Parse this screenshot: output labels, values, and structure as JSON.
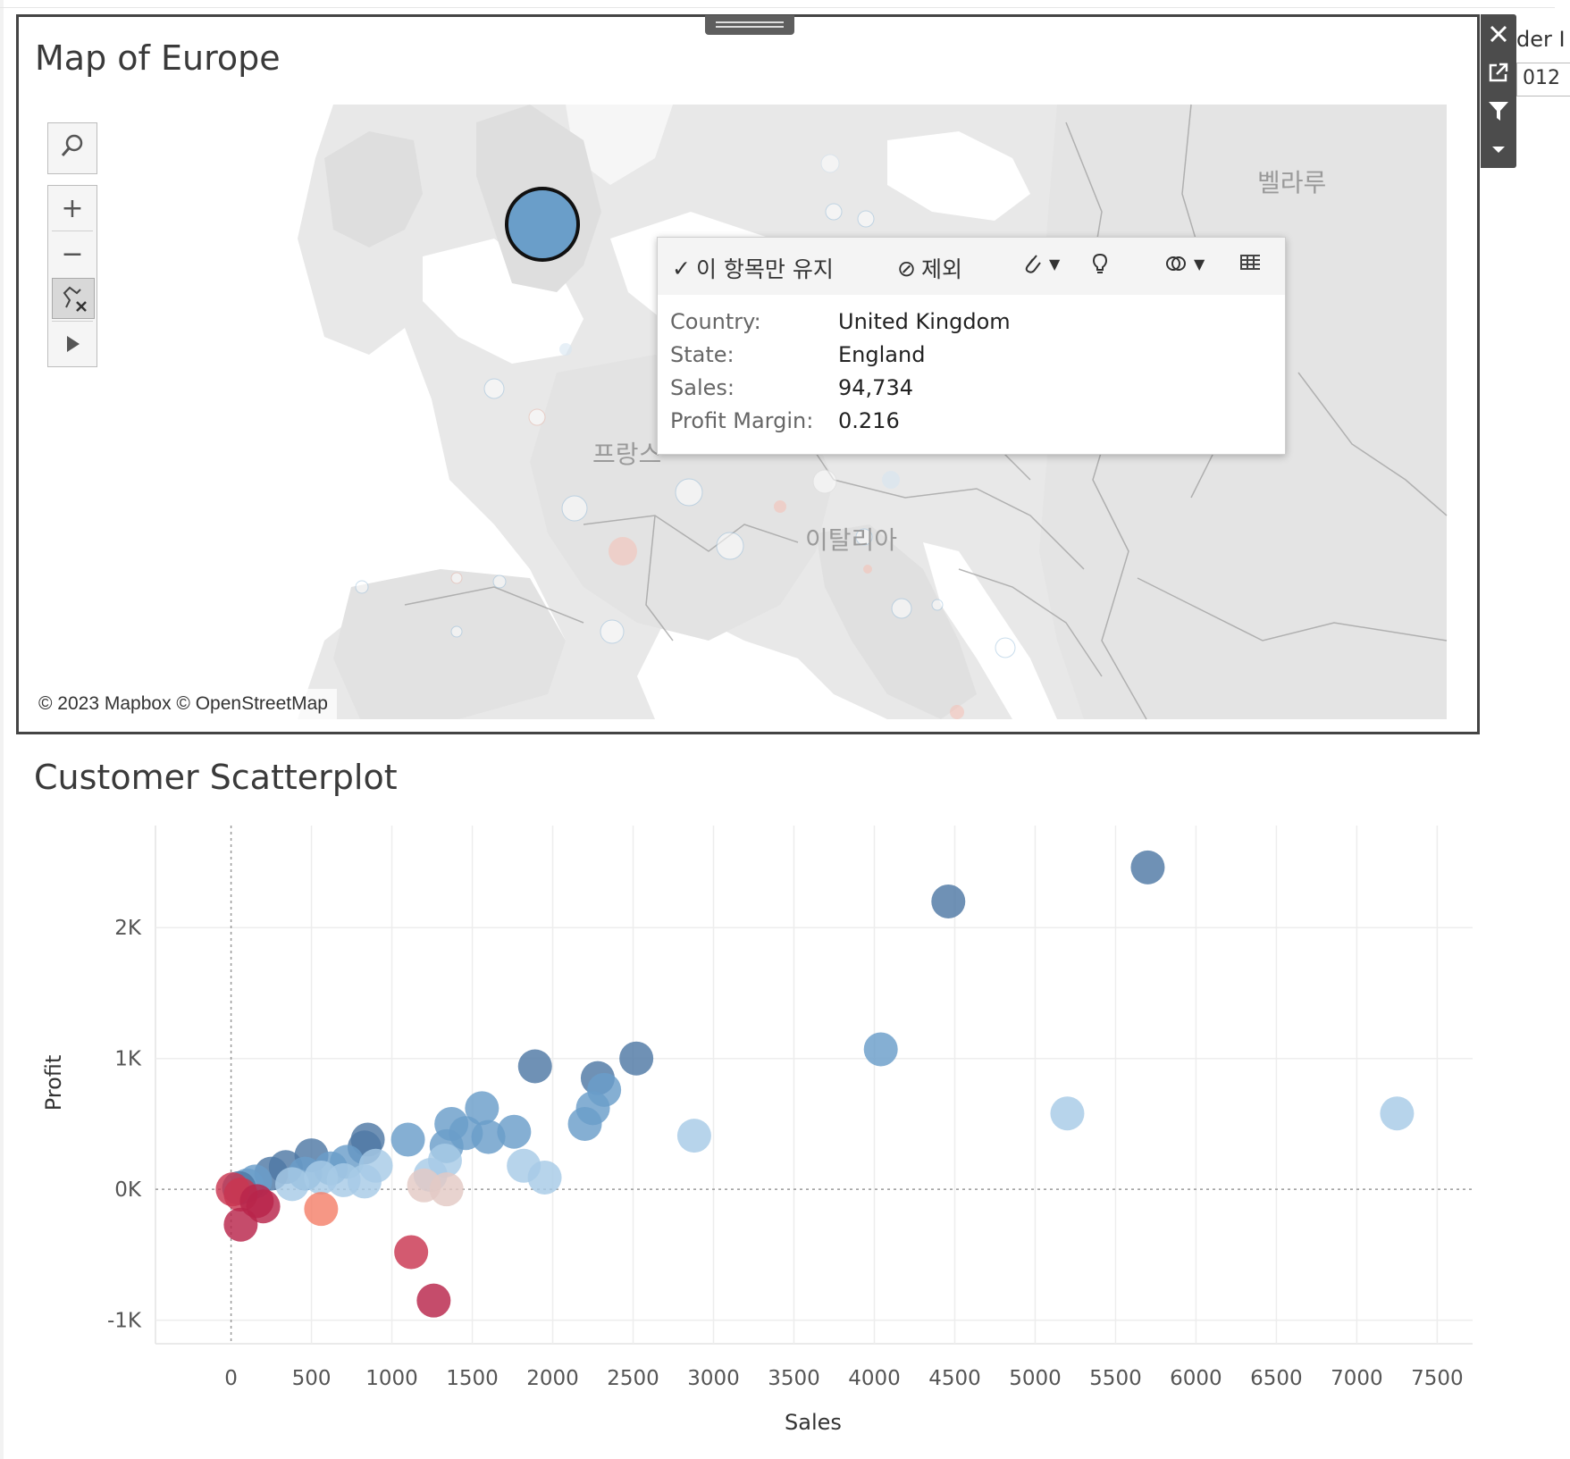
{
  "map": {
    "title": "Map of Europe",
    "attribution": "© 2023 Mapbox © OpenStreetMap",
    "labels": {
      "france": "프랑스",
      "italy": "이탈리아",
      "belarus": "벨라루"
    },
    "tools": {
      "search_icon": "magnifier-icon",
      "zoom_in": "+",
      "zoom_out": "−",
      "pin_icon": "pin-clear-icon",
      "play_icon": "play-icon"
    },
    "tooltip": {
      "keep_only": "이 항목만 유지",
      "exclude": "제외",
      "fields": [
        {
          "key": "Country:",
          "value": "United Kingdom"
        },
        {
          "key": "State:",
          "value": "England"
        },
        {
          "key": "Sales:",
          "value": "94,734"
        },
        {
          "key": "Profit Margin:",
          "value": "0.216"
        }
      ]
    },
    "selected_mark_color": "#6a9ec9"
  },
  "side_toolbar": {
    "close_icon": "close-icon",
    "popout_icon": "popout-icon",
    "filter_icon": "filter-icon",
    "menu_icon": "dropdown-icon"
  },
  "filter_peek": {
    "label": "der I",
    "value": "012"
  },
  "scatter": {
    "title": "Customer Scatterplot"
  },
  "chart_data": {
    "type": "scatter",
    "title": "Customer Scatterplot",
    "xlabel": "Sales",
    "ylabel": "Profit",
    "xlim": [
      -470,
      7720
    ],
    "ylim": [
      -1180,
      2780
    ],
    "x_ticks": [
      0,
      500,
      1000,
      1500,
      2000,
      2500,
      3000,
      3500,
      4000,
      4500,
      5000,
      5500,
      6000,
      6500,
      7000,
      7500
    ],
    "y_ticks": [
      {
        "value": -1000,
        "label": "-1K"
      },
      {
        "value": 0,
        "label": "0K"
      },
      {
        "value": 1000,
        "label": "1K"
      },
      {
        "value": 2000,
        "label": "2K"
      }
    ],
    "grid": true,
    "colors": {
      "dark_blue": "#4f79a5",
      "mid_blue": "#6a9ec9",
      "light_blue": "#a7cbe6",
      "pale": "#e3c9c4",
      "light_red": "#f4806a",
      "red": "#c93651",
      "dark_red": "#b8244a"
    },
    "points": [
      {
        "x": 5700,
        "y": 2460,
        "c": "dark_blue"
      },
      {
        "x": 4460,
        "y": 2200,
        "c": "dark_blue"
      },
      {
        "x": 4040,
        "y": 1070,
        "c": "mid_blue"
      },
      {
        "x": 2520,
        "y": 1000,
        "c": "dark_blue"
      },
      {
        "x": 1890,
        "y": 940,
        "c": "dark_blue"
      },
      {
        "x": 2280,
        "y": 850,
        "c": "dark_blue"
      },
      {
        "x": 2320,
        "y": 760,
        "c": "mid_blue"
      },
      {
        "x": 2250,
        "y": 620,
        "c": "mid_blue"
      },
      {
        "x": 2200,
        "y": 500,
        "c": "mid_blue"
      },
      {
        "x": 5200,
        "y": 580,
        "c": "light_blue"
      },
      {
        "x": 7250,
        "y": 580,
        "c": "light_blue"
      },
      {
        "x": 2880,
        "y": 410,
        "c": "light_blue"
      },
      {
        "x": 1560,
        "y": 620,
        "c": "mid_blue"
      },
      {
        "x": 1370,
        "y": 500,
        "c": "mid_blue"
      },
      {
        "x": 1760,
        "y": 440,
        "c": "mid_blue"
      },
      {
        "x": 1600,
        "y": 400,
        "c": "mid_blue"
      },
      {
        "x": 1460,
        "y": 430,
        "c": "mid_blue"
      },
      {
        "x": 1340,
        "y": 330,
        "c": "mid_blue"
      },
      {
        "x": 1100,
        "y": 380,
        "c": "mid_blue"
      },
      {
        "x": 850,
        "y": 380,
        "c": "dark_blue"
      },
      {
        "x": 830,
        "y": 320,
        "c": "dark_blue"
      },
      {
        "x": 1330,
        "y": 220,
        "c": "light_blue"
      },
      {
        "x": 1240,
        "y": 110,
        "c": "light_blue"
      },
      {
        "x": 1820,
        "y": 180,
        "c": "light_blue"
      },
      {
        "x": 1950,
        "y": 90,
        "c": "light_blue"
      },
      {
        "x": 1200,
        "y": 30,
        "c": "pale"
      },
      {
        "x": 1340,
        "y": 0,
        "c": "pale"
      },
      {
        "x": 500,
        "y": 260,
        "c": "dark_blue"
      },
      {
        "x": 720,
        "y": 210,
        "c": "mid_blue"
      },
      {
        "x": 900,
        "y": 180,
        "c": "light_blue"
      },
      {
        "x": 620,
        "y": 160,
        "c": "mid_blue"
      },
      {
        "x": 340,
        "y": 170,
        "c": "dark_blue"
      },
      {
        "x": 250,
        "y": 120,
        "c": "dark_blue"
      },
      {
        "x": 460,
        "y": 120,
        "c": "mid_blue"
      },
      {
        "x": 560,
        "y": 90,
        "c": "light_blue"
      },
      {
        "x": 700,
        "y": 70,
        "c": "light_blue"
      },
      {
        "x": 830,
        "y": 60,
        "c": "light_blue"
      },
      {
        "x": 150,
        "y": 60,
        "c": "mid_blue"
      },
      {
        "x": 100,
        "y": 30,
        "c": "mid_blue"
      },
      {
        "x": 380,
        "y": 40,
        "c": "light_blue"
      },
      {
        "x": 50,
        "y": 10,
        "c": "dark_blue"
      },
      {
        "x": 10,
        "y": 0,
        "c": "red"
      },
      {
        "x": 60,
        "y": -40,
        "c": "red"
      },
      {
        "x": 160,
        "y": -90,
        "c": "dark_red"
      },
      {
        "x": 200,
        "y": -130,
        "c": "dark_red"
      },
      {
        "x": 560,
        "y": -150,
        "c": "light_red"
      },
      {
        "x": 60,
        "y": -270,
        "c": "dark_red"
      },
      {
        "x": 1120,
        "y": -480,
        "c": "red"
      },
      {
        "x": 1260,
        "y": -850,
        "c": "dark_red"
      }
    ]
  }
}
